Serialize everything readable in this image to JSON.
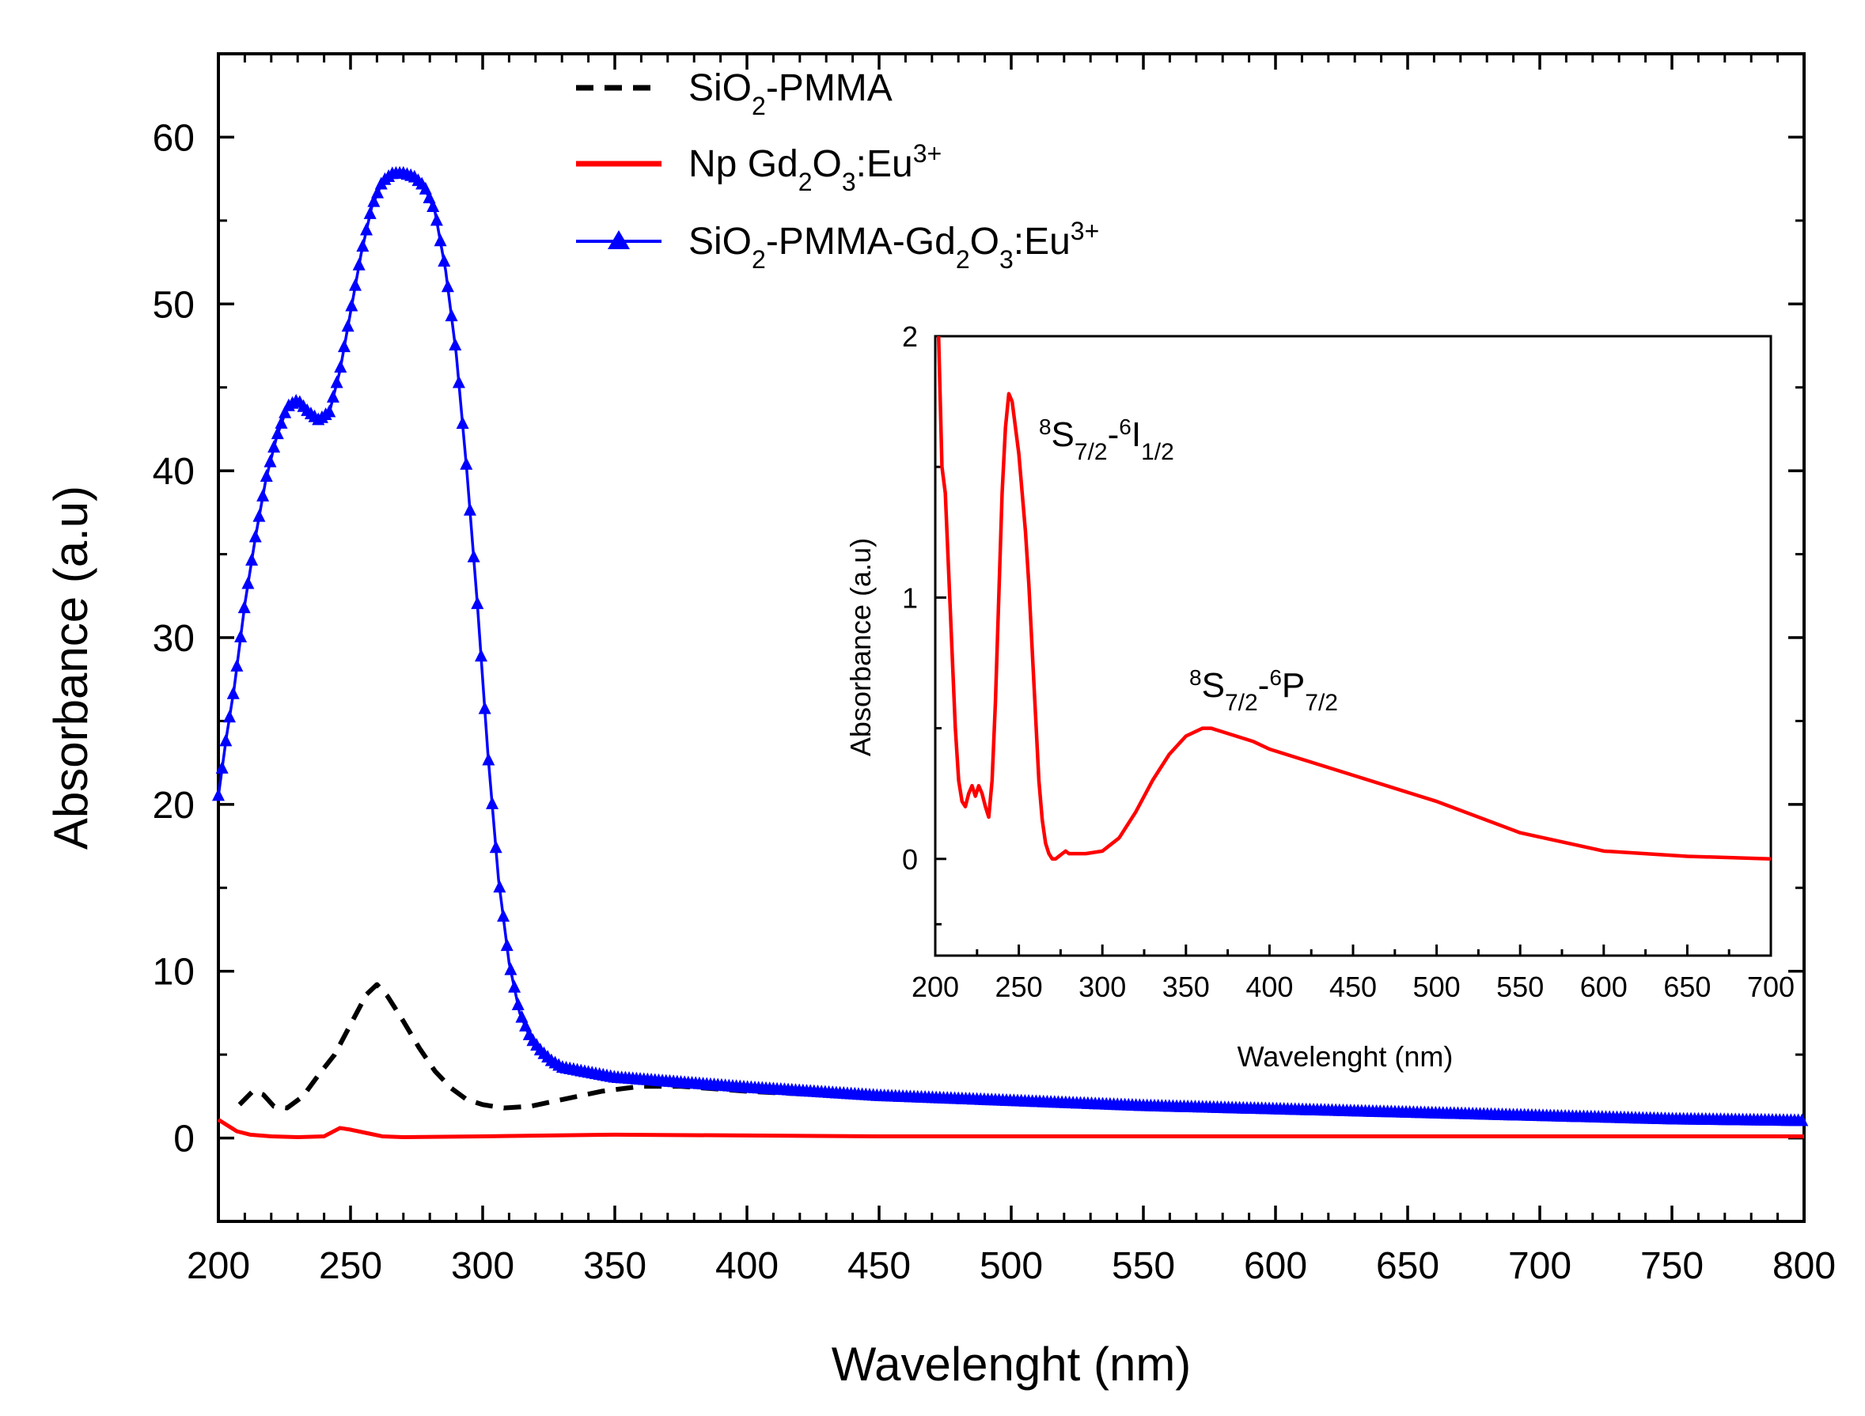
{
  "chart_data": [
    {
      "type": "line",
      "xlabel": "Wavelenght (nm)",
      "ylabel": "Absorbance (a.u)",
      "xlim": [
        200,
        800
      ],
      "ylim": [
        -5,
        65
      ],
      "xticks": [
        "200",
        "250",
        "300",
        "350",
        "400",
        "450",
        "500",
        "550",
        "600",
        "650",
        "700",
        "750",
        "800"
      ],
      "yticks": [
        "0",
        "10",
        "20",
        "30",
        "40",
        "50",
        "60"
      ],
      "legend_position": "top-center",
      "series": [
        {
          "name": "SiO2-PMMA",
          "name_parts": {
            "a": "SiO",
            "a_sub": "2",
            "b": "-PMMA"
          },
          "color": "#000000",
          "style": "dashed",
          "x": [
            208,
            213,
            217,
            221,
            226,
            232,
            238,
            244,
            250,
            256,
            260,
            264,
            270,
            276,
            282,
            288,
            294,
            300,
            308,
            318,
            330,
            345,
            360,
            375,
            400,
            450,
            500
          ],
          "y": [
            2.0,
            2.8,
            2.6,
            1.9,
            1.8,
            2.5,
            3.8,
            5.0,
            6.8,
            8.6,
            9.2,
            8.5,
            7.0,
            5.4,
            4.0,
            3.0,
            2.3,
            2.0,
            1.8,
            1.9,
            2.3,
            2.8,
            3.1,
            3.1,
            2.8,
            2.4,
            2.2
          ]
        },
        {
          "name": "Np Gd2O3:Eu3+",
          "name_parts": {
            "a": "Np Gd",
            "a_sub": "2",
            "b": "O",
            "b_sub": "3",
            "c": ":Eu",
            "c_sup": "3+"
          },
          "color": "#ff0000",
          "style": "solid",
          "x": [
            200,
            203,
            207,
            212,
            220,
            230,
            240,
            246,
            250,
            256,
            262,
            270,
            300,
            350,
            400,
            450,
            500,
            550,
            600,
            650,
            700,
            750,
            800
          ],
          "y": [
            1.1,
            0.8,
            0.4,
            0.2,
            0.1,
            0.05,
            0.1,
            0.6,
            0.5,
            0.3,
            0.1,
            0.05,
            0.1,
            0.2,
            0.15,
            0.1,
            0.1,
            0.1,
            0.1,
            0.1,
            0.1,
            0.1,
            0.1
          ]
        },
        {
          "name": "SiO2-PMMA-Gd2O3:Eu3+",
          "name_parts": {
            "a": "SiO",
            "a_sub": "2",
            "b": "-PMMA-Gd",
            "b_sub": "2",
            "c": "O",
            "c_sub": "3",
            "d": ":Eu",
            "d_sup": "3+"
          },
          "color": "#0000ff",
          "style": "solid-triangle-markers",
          "x": [
            200,
            203,
            206,
            210,
            214,
            218,
            222,
            226,
            230,
            234,
            238,
            242,
            246,
            250,
            254,
            258,
            262,
            266,
            270,
            274,
            278,
            282,
            286,
            290,
            294,
            298,
            302,
            306,
            310,
            314,
            318,
            322,
            326,
            330,
            340,
            350,
            375,
            400,
            450,
            500,
            550,
            600,
            650,
            700,
            750,
            800
          ],
          "y": [
            20.5,
            24,
            27,
            32,
            36,
            39.5,
            42,
            43.8,
            44.2,
            43.5,
            43.0,
            43.5,
            46,
            49.5,
            53,
            55.8,
            57.3,
            57.8,
            57.8,
            57.6,
            57.0,
            55.5,
            52,
            47,
            40,
            32,
            23,
            15.5,
            10.5,
            7.5,
            6.0,
            5.2,
            4.6,
            4.2,
            3.9,
            3.6,
            3.3,
            3.0,
            2.5,
            2.2,
            1.9,
            1.7,
            1.5,
            1.3,
            1.1,
            1.0
          ]
        }
      ]
    },
    {
      "type": "line",
      "role": "inset",
      "xlabel": "Wavelenght (nm)",
      "ylabel": "Absorbance (a.u)",
      "xlim": [
        200,
        700
      ],
      "ylim": [
        -0.37,
        2.0
      ],
      "xticks": [
        "200",
        "250",
        "300",
        "350",
        "400",
        "450",
        "500",
        "550",
        "600",
        "650",
        "700"
      ],
      "yticks": [
        "0",
        "1",
        "2"
      ],
      "annotations": [
        {
          "base": "8",
          "mid": "S",
          "sub": "7/2",
          "dash": "-",
          "base2": "6",
          "mid2": "I",
          "sub2": "1/2",
          "x": 262,
          "y": 1.58
        },
        {
          "base": "8",
          "mid": "S",
          "sub": "7/2",
          "dash": "-",
          "base2": "6",
          "mid2": "P",
          "sub2": "7/2",
          "x": 352,
          "y": 0.62
        }
      ],
      "series": [
        {
          "color": "#ff0000",
          "x": [
            202,
            204,
            206,
            208,
            210,
            212,
            214,
            216,
            218,
            220,
            222,
            224,
            226,
            228,
            230,
            232,
            234,
            236,
            238,
            240,
            242,
            244,
            246,
            248,
            250,
            252,
            254,
            256,
            258,
            260,
            262,
            264,
            266,
            268,
            270,
            272,
            274,
            276,
            278,
            280,
            285,
            290,
            300,
            310,
            320,
            330,
            340,
            350,
            360,
            365,
            370,
            380,
            390,
            400,
            420,
            450,
            500,
            550,
            600,
            650,
            700
          ],
          "y": [
            2.0,
            1.5,
            1.4,
            1.1,
            0.8,
            0.5,
            0.3,
            0.22,
            0.2,
            0.25,
            0.28,
            0.24,
            0.28,
            0.25,
            0.2,
            0.16,
            0.3,
            0.6,
            1.0,
            1.4,
            1.65,
            1.78,
            1.75,
            1.65,
            1.55,
            1.4,
            1.25,
            1.05,
            0.8,
            0.55,
            0.3,
            0.15,
            0.06,
            0.02,
            0.0,
            0.0,
            0.01,
            0.02,
            0.03,
            0.02,
            0.02,
            0.02,
            0.03,
            0.08,
            0.18,
            0.3,
            0.4,
            0.47,
            0.5,
            0.5,
            0.49,
            0.47,
            0.45,
            0.42,
            0.38,
            0.32,
            0.22,
            0.1,
            0.03,
            0.01,
            0.0
          ]
        }
      ]
    }
  ]
}
